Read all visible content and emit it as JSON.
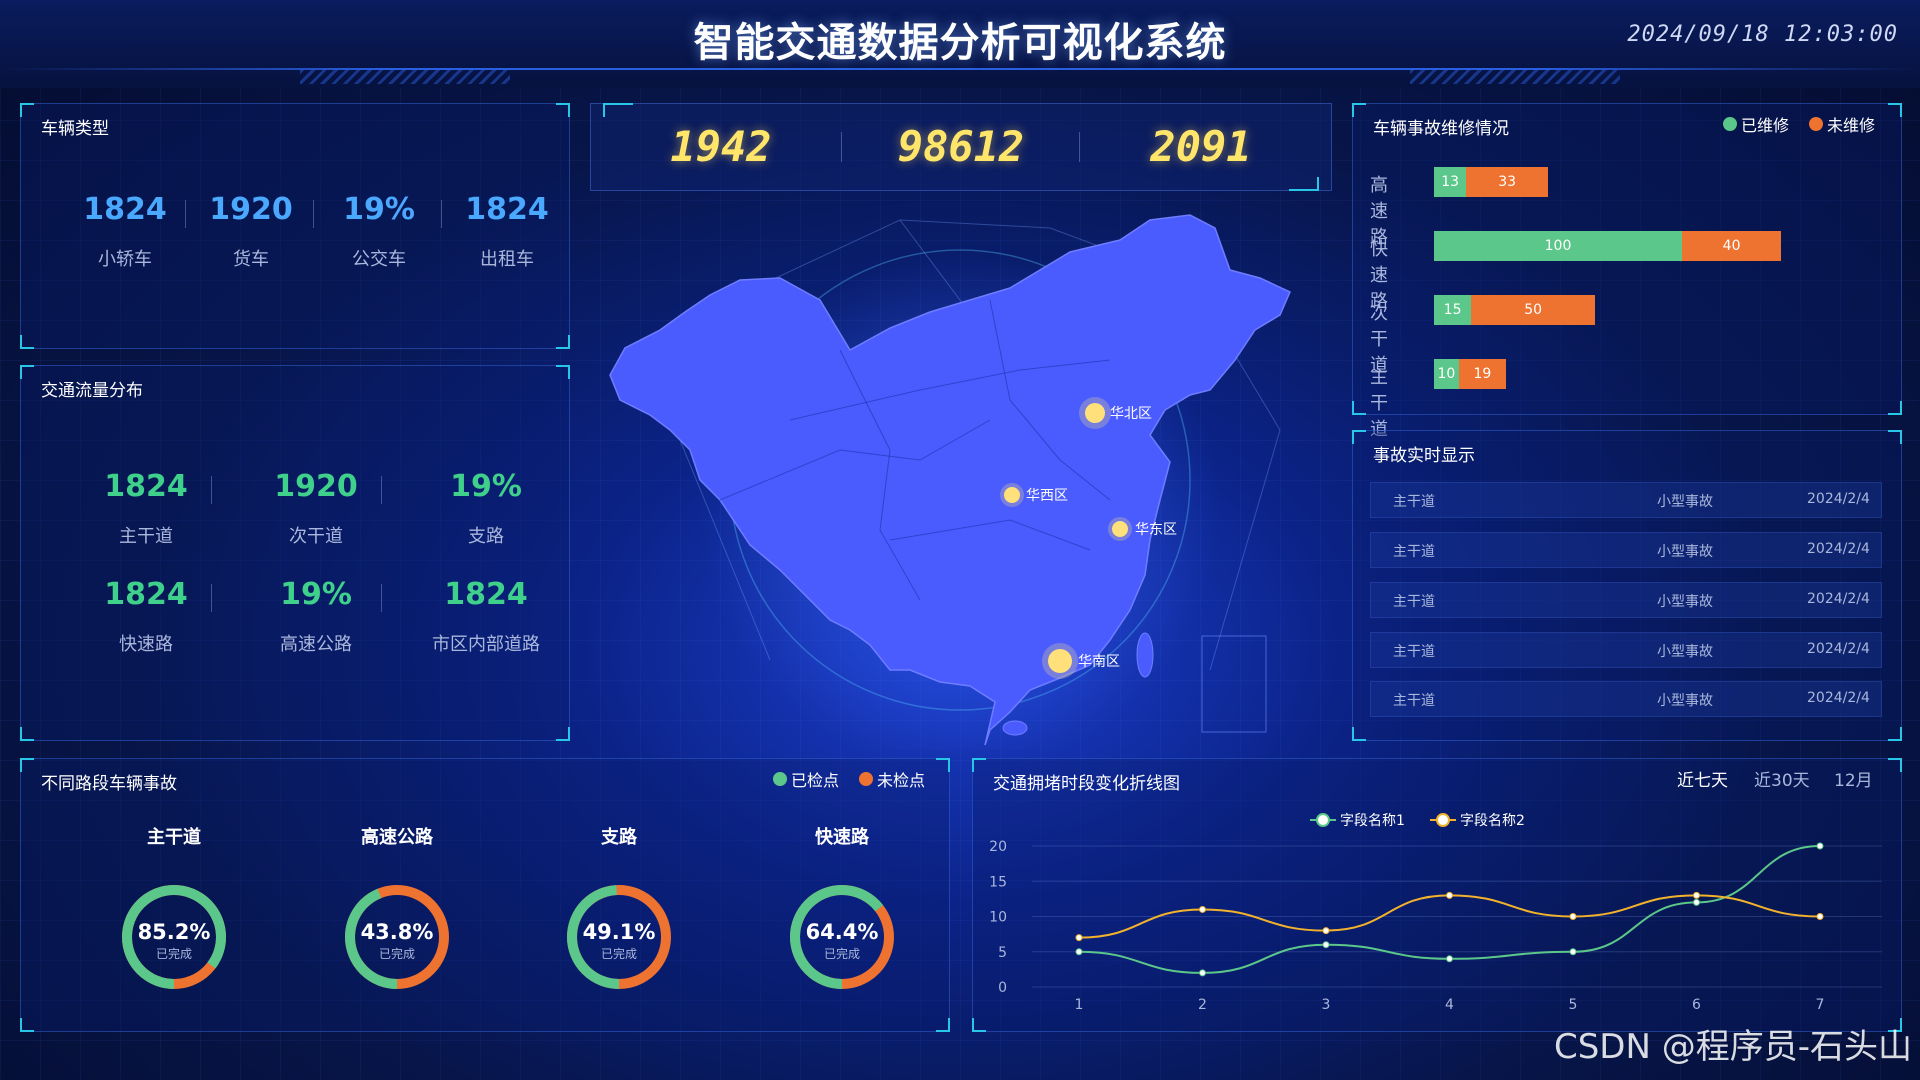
{
  "header": {
    "title": "智能交通数据分析可视化系统",
    "datetime": "2024/09/18 12:03:00"
  },
  "vehicle_types": {
    "title": "车辆类型",
    "items": [
      {
        "value": "1824",
        "label": "小轿车"
      },
      {
        "value": "1920",
        "label": "货车"
      },
      {
        "value": "19%",
        "label": "公交车"
      },
      {
        "value": "1824",
        "label": "出租车"
      }
    ]
  },
  "traffic_flow": {
    "title": "交通流量分布",
    "items": [
      {
        "value": "1824",
        "label": "主干道"
      },
      {
        "value": "1920",
        "label": "次干道"
      },
      {
        "value": "19%",
        "label": "支路"
      },
      {
        "value": "1824",
        "label": "快速路"
      },
      {
        "value": "19%",
        "label": "高速公路"
      },
      {
        "value": "1824",
        "label": "市区内部道路"
      }
    ]
  },
  "counters": [
    "1942",
    "98612",
    "2091"
  ],
  "map": {
    "points": [
      {
        "label": "华北区"
      },
      {
        "label": "华西区"
      },
      {
        "label": "华东区"
      },
      {
        "label": "华南区"
      }
    ]
  },
  "repair": {
    "title": "车辆事故维修情况",
    "legend": {
      "repaired": "已维修",
      "unrepaired": "未维修"
    },
    "colors": {
      "repaired": "#5cc78a",
      "unrepaired": "#ee7230"
    },
    "rows": [
      {
        "label": "高速路",
        "repaired": 13,
        "unrepaired": 33
      },
      {
        "label": "快速路",
        "repaired": 100,
        "unrepaired": 40
      },
      {
        "label": "次干道",
        "repaired": 15,
        "unrepaired": 50
      },
      {
        "label": "主干道",
        "repaired": 10,
        "unrepaired": 19
      }
    ]
  },
  "accidents": {
    "title": "事故实时显示",
    "rows": [
      {
        "road": "主干道",
        "type": "小型事故",
        "date": "2024/2/4"
      },
      {
        "road": "主干道",
        "type": "小型事故",
        "date": "2024/2/4"
      },
      {
        "road": "主干道",
        "type": "小型事故",
        "date": "2024/2/4"
      },
      {
        "road": "主干道",
        "type": "小型事故",
        "date": "2024/2/4"
      },
      {
        "road": "主干道",
        "type": "小型事故",
        "date": "2024/2/4"
      }
    ]
  },
  "road_accidents": {
    "title": "不同路段车辆事故",
    "legend": {
      "checked": "已检点",
      "unchecked": "未检点"
    },
    "sub_label": "已完成",
    "items": [
      {
        "name": "主干道",
        "percent": "85.2%",
        "ratio": 0.852
      },
      {
        "name": "高速公路",
        "percent": "43.8%",
        "ratio": 0.438
      },
      {
        "name": "支路",
        "percent": "49.1%",
        "ratio": 0.491
      },
      {
        "name": "快速路",
        "percent": "64.4%",
        "ratio": 0.644
      }
    ]
  },
  "congestion": {
    "title": "交通拥堵时段变化折线图",
    "tabs": [
      "近七天",
      "近30天",
      "12月"
    ],
    "active_tab": 0
  },
  "chart_data": {
    "type": "line",
    "x": [
      1,
      2,
      3,
      4,
      5,
      6,
      7
    ],
    "ylim": [
      0,
      20
    ],
    "yticks": [
      0,
      5,
      10,
      15,
      20
    ],
    "series": [
      {
        "name": "字段名称1",
        "values": [
          5,
          2,
          6,
          4,
          5,
          12,
          20
        ],
        "color": "#5cc78a"
      },
      {
        "name": "字段名称2",
        "values": [
          7,
          11,
          8,
          13,
          10,
          13,
          10
        ],
        "color": "#f2b22c"
      }
    ],
    "legend": "top-center",
    "grid": true
  },
  "watermark": "CSDN @程序员-石头山"
}
